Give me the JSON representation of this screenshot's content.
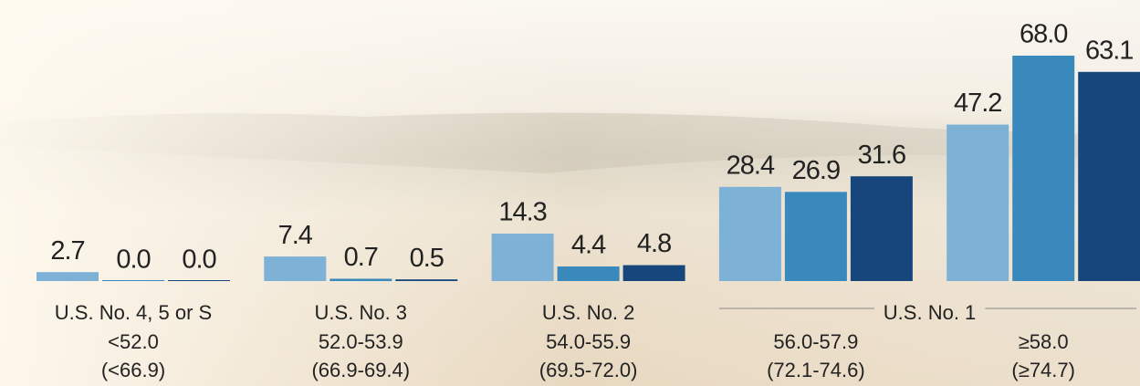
{
  "chart_data": {
    "type": "bar",
    "grades": [
      {
        "label": "U.S. No. 4, 5 or S",
        "span": 1
      },
      {
        "label": "U.S. No. 3",
        "span": 1
      },
      {
        "label": "U.S. No. 2",
        "span": 1
      },
      {
        "label": "U.S. No. 1",
        "span": 2
      }
    ],
    "categories": [
      "<52.0",
      "52.0-53.9",
      "54.0-55.9",
      "56.0-57.9",
      "≥58.0"
    ],
    "category_sublabels": [
      "(<66.9)",
      "(66.9-69.4)",
      "(69.5-72.0)",
      "(72.1-74.6)",
      "(≥74.7)"
    ],
    "series": [
      {
        "color": "#7db1d6",
        "values": [
          2.7,
          7.4,
          14.3,
          28.4,
          47.2
        ],
        "value_labels": [
          "2.7",
          "7.4",
          "14.3",
          "28.4",
          "47.2"
        ]
      },
      {
        "color": "#3a89bd",
        "values": [
          0,
          0.7,
          4.4,
          26.9,
          68.0
        ],
        "value_labels": [
          "0.0",
          "0.7",
          "4.4",
          "26.9",
          "68.0"
        ]
      },
      {
        "color": "#17467c",
        "values": [
          0,
          0.5,
          4.8,
          31.6,
          63.1
        ],
        "value_labels": [
          "0.0",
          "0.5",
          "4.8",
          "31.6",
          "63.1"
        ]
      }
    ],
    "ylim": [
      0,
      68
    ]
  }
}
